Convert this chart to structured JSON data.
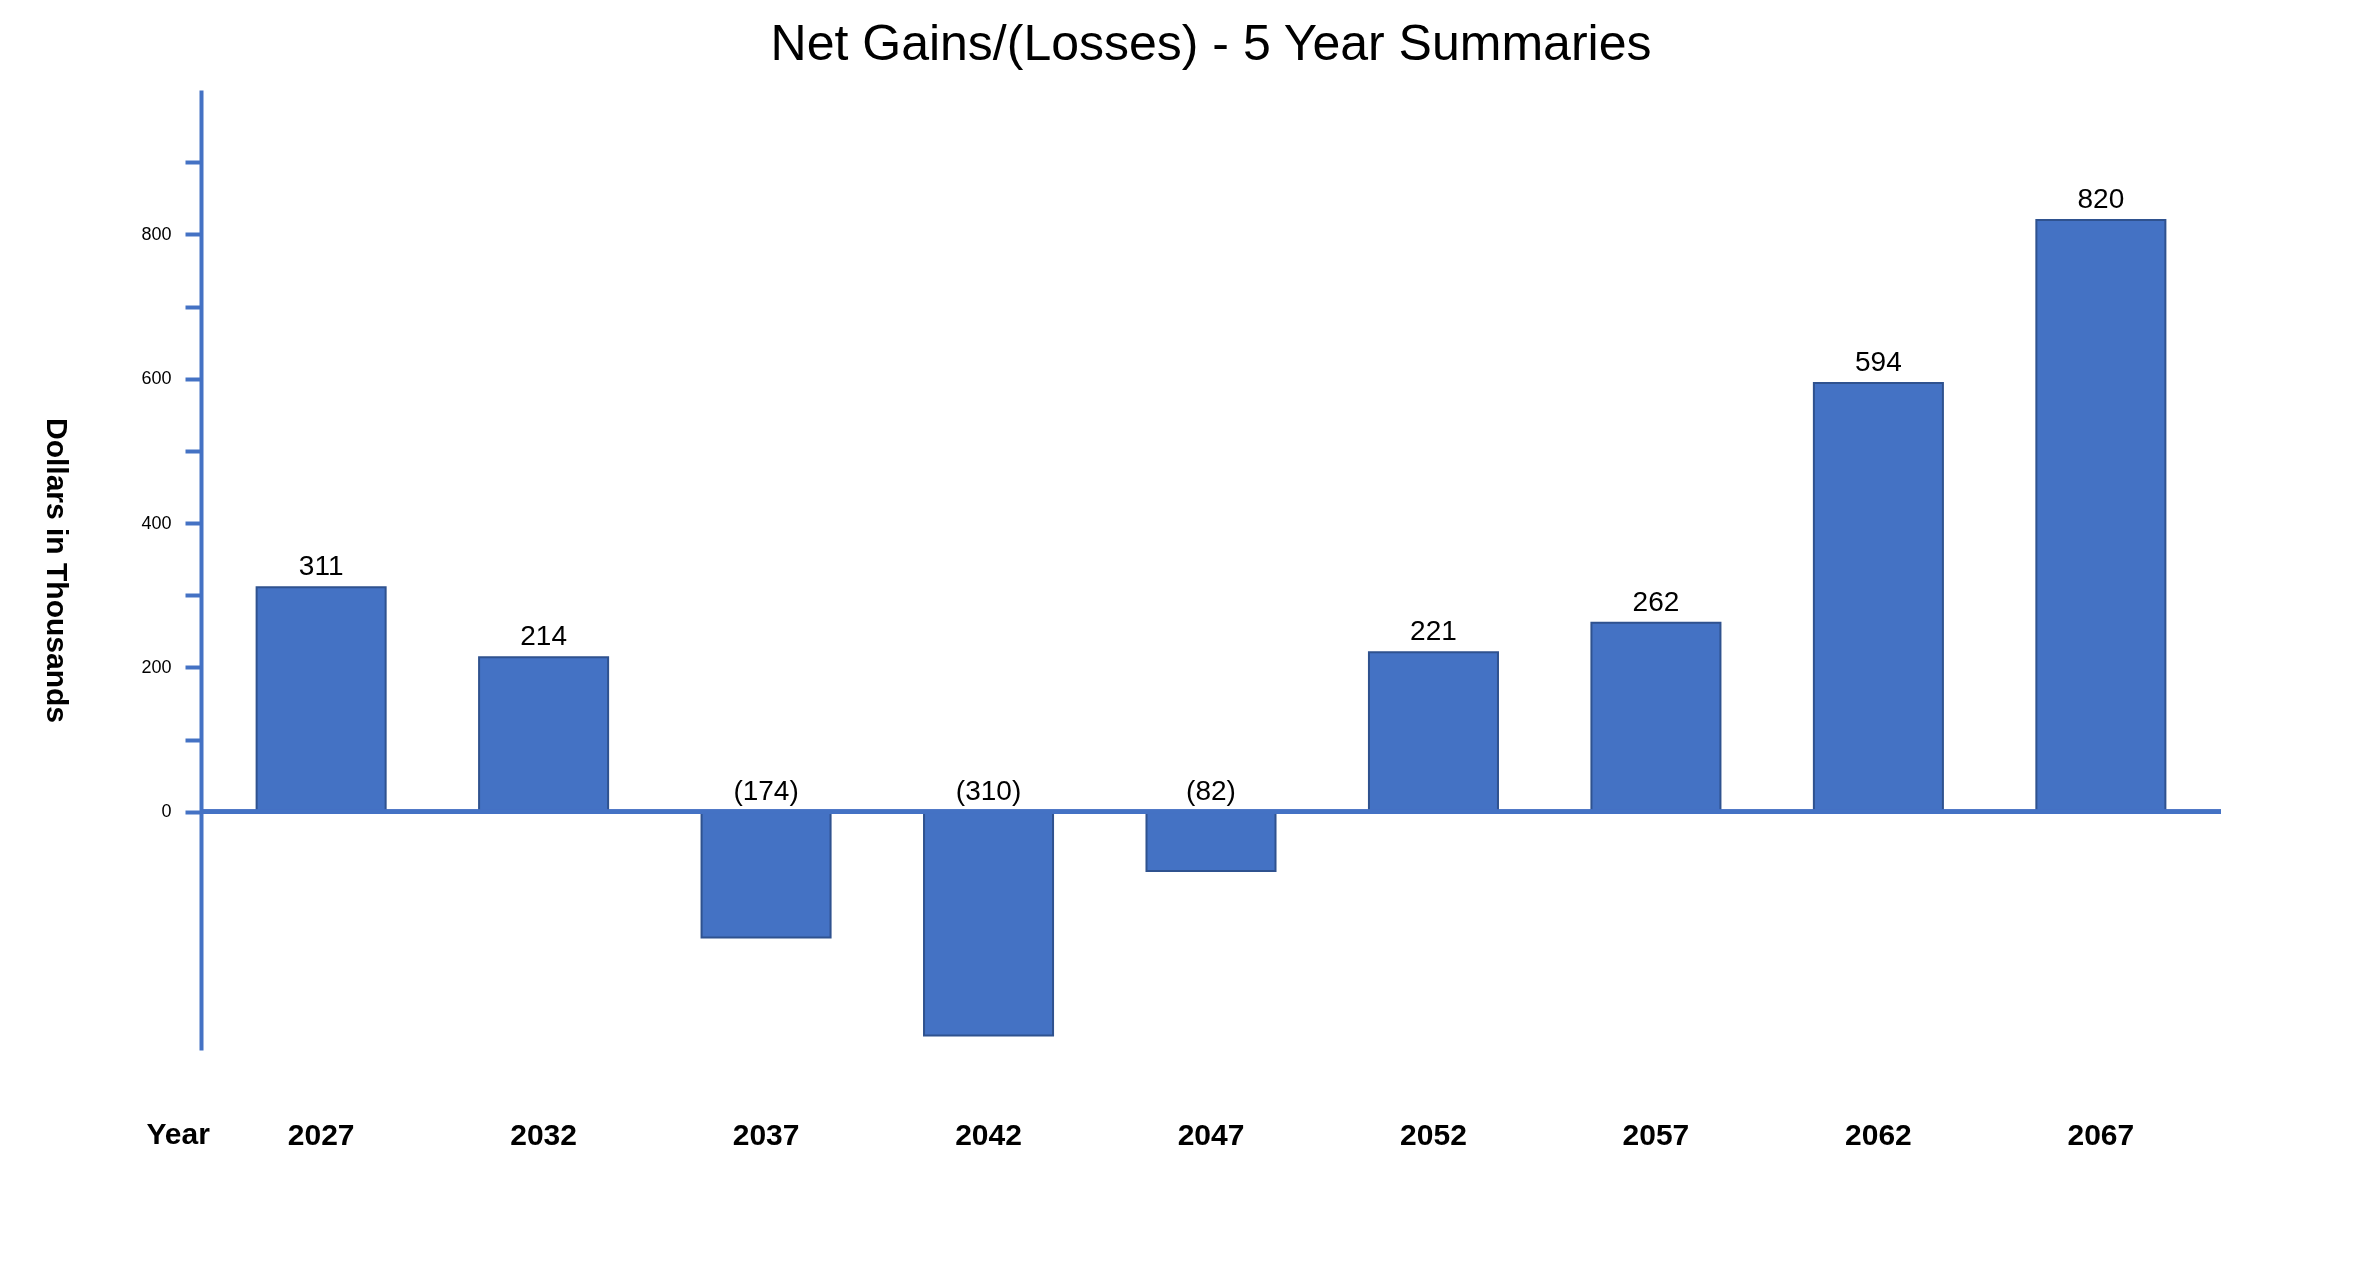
{
  "chart_data": {
    "type": "bar",
    "title": "Net  Gains/(Losses)  - 5 Year Summaries",
    "xlabel": "Year",
    "ylabel": "Dollars in Thousands",
    "categories": [
      "2027",
      "2032",
      "2037",
      "2042",
      "2047",
      "2052",
      "2057",
      "2062",
      "2067"
    ],
    "values": [
      311,
      214,
      -174,
      -310,
      -82,
      221,
      262,
      594,
      820
    ],
    "value_labels": [
      "311",
      "214",
      "(174)",
      "(310)",
      "(82)",
      "221",
      "262",
      "594",
      "820"
    ],
    "color": "#4472c4",
    "ylim": [
      -330,
      1000
    ],
    "yticks": [
      0,
      {
        "value": 100,
        "label": null
      },
      200,
      {
        "value": 300,
        "label": null
      },
      400,
      {
        "value": 500,
        "label": null
      },
      600,
      {
        "value": 700,
        "label": null
      },
      800,
      {
        "value": 900,
        "label": null
      }
    ],
    "ref_lines": [
      {
        "axis": "y",
        "value": 0,
        "color": "#4472c4"
      }
    ],
    "grid": false
  }
}
